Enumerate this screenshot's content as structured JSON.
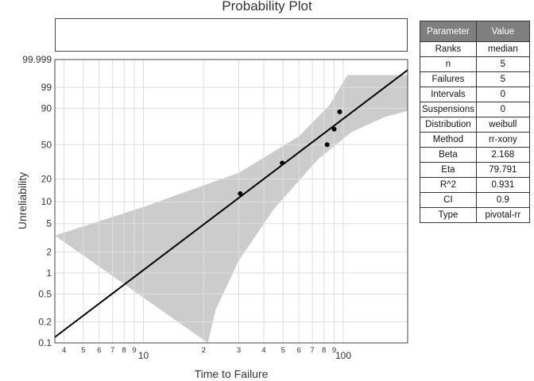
{
  "chart_data": {
    "type": "scatter",
    "title": "Probability Plot",
    "xlabel": "Time to Failure",
    "ylabel": "Unreliability",
    "x_scale": "log",
    "y_scale": "weibull-probability",
    "xlim": [
      3.6,
      210
    ],
    "ylim_percent": [
      0.1,
      99.999
    ],
    "x_major_ticks": [
      {
        "value": 10,
        "label": "10"
      },
      {
        "value": 100,
        "label": "100"
      }
    ],
    "x_minor_ticks": [
      {
        "value": 4,
        "label": "4"
      },
      {
        "value": 5,
        "label": "5"
      },
      {
        "value": 6,
        "label": "6"
      },
      {
        "value": 7,
        "label": "7"
      },
      {
        "value": 8,
        "label": "8"
      },
      {
        "value": 9,
        "label": "9"
      },
      {
        "value": 20,
        "label": "2"
      },
      {
        "value": 30,
        "label": "3"
      },
      {
        "value": 40,
        "label": "4"
      },
      {
        "value": 50,
        "label": "5"
      },
      {
        "value": 60,
        "label": "6"
      },
      {
        "value": 70,
        "label": "7"
      },
      {
        "value": 80,
        "label": "8"
      },
      {
        "value": 90,
        "label": "9"
      }
    ],
    "y_ticks": [
      {
        "value": 0.1,
        "label": "0.1"
      },
      {
        "value": 0.2,
        "label": "0.2"
      },
      {
        "value": 0.5,
        "label": "0.5"
      },
      {
        "value": 1,
        "label": "1"
      },
      {
        "value": 2,
        "label": "2"
      },
      {
        "value": 5,
        "label": "5"
      },
      {
        "value": 10,
        "label": "10"
      },
      {
        "value": 20,
        "label": "20"
      },
      {
        "value": 50,
        "label": "50"
      },
      {
        "value": 90,
        "label": "90"
      },
      {
        "value": 99,
        "label": "99"
      },
      {
        "value": 99.999,
        "label": "99.999"
      }
    ],
    "points": [
      {
        "x": 30.5,
        "y": 12.9
      },
      {
        "x": 49.5,
        "y": 31.5
      },
      {
        "x": 83,
        "y": 50
      },
      {
        "x": 90,
        "y": 68.5
      },
      {
        "x": 96,
        "y": 87.1
      }
    ],
    "fit_line": {
      "beta": 2.168,
      "eta": 79.791
    },
    "confidence_band": {
      "upper": [
        {
          "x": 3.6,
          "y": 3.4
        },
        {
          "x": 10,
          "y": 8.5
        },
        {
          "x": 30,
          "y": 24
        },
        {
          "x": 60,
          "y": 60
        },
        {
          "x": 85,
          "y": 92
        },
        {
          "x": 105,
          "y": 99.9
        },
        {
          "x": 210,
          "y": 99.9
        }
      ],
      "lower": [
        {
          "x": 210,
          "y": 88
        },
        {
          "x": 160,
          "y": 82
        },
        {
          "x": 110,
          "y": 65
        },
        {
          "x": 75,
          "y": 35
        },
        {
          "x": 45,
          "y": 8
        },
        {
          "x": 30,
          "y": 1.5
        },
        {
          "x": 23,
          "y": 0.3
        },
        {
          "x": 21,
          "y": 0.1
        }
      ],
      "color": "#cccccc"
    },
    "grid": true,
    "colors": {
      "points": "#000000",
      "line": "#000000",
      "band": "#cccccc",
      "grid": "#dedede"
    }
  },
  "table": {
    "headers": [
      "Parameter",
      "Value"
    ],
    "rows": [
      {
        "param": "Ranks",
        "value": "median"
      },
      {
        "param": "n",
        "value": "5"
      },
      {
        "param": "Failures",
        "value": "5"
      },
      {
        "param": "Intervals",
        "value": "0"
      },
      {
        "param": "Suspensions",
        "value": "0"
      },
      {
        "param": "Distribution",
        "value": "weibull"
      },
      {
        "param": "Method",
        "value": "rr-xony"
      },
      {
        "param": "Beta",
        "value": "2.168"
      },
      {
        "param": "Eta",
        "value": "79.791"
      },
      {
        "param": "R^2",
        "value": "0.931"
      },
      {
        "param": "CI",
        "value": "0.9"
      },
      {
        "param": "Type",
        "value": "pivotal-rr"
      }
    ]
  }
}
